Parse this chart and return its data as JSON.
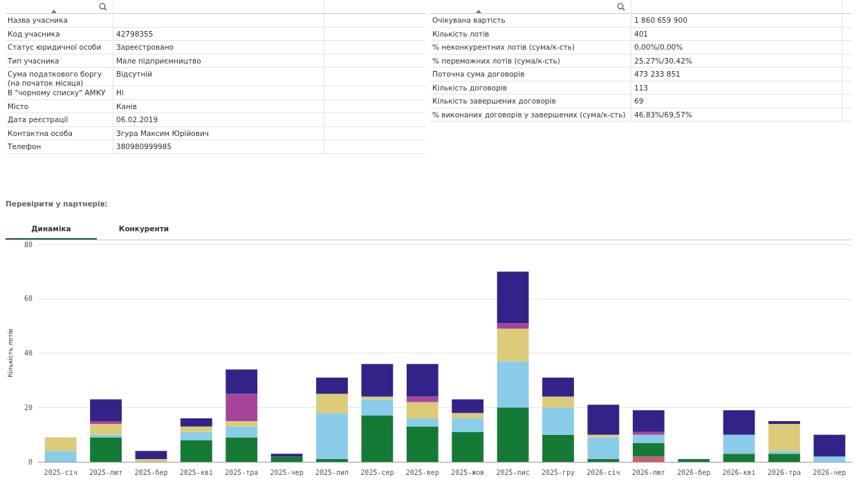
{
  "chart_data": {
    "type": "bar",
    "stacked": true,
    "ylabel": "Кількість лотів",
    "categories": [
      "2025-січ",
      "2025-лют",
      "2025-бер",
      "2025-кві",
      "2025-тра",
      "2025-чер",
      "2025-лип",
      "2025-сер",
      "2025-вер",
      "2025-жов",
      "2025-лис",
      "2025-гру",
      "2026-січ",
      "2026-лют",
      "2026-бер",
      "2026-кві",
      "2026-тра",
      "2026-чер"
    ],
    "series": [
      {
        "color": "#c9606e",
        "values": [
          0,
          0,
          0,
          0,
          0,
          0,
          0,
          0,
          0,
          0,
          0,
          0,
          0,
          2,
          0,
          0,
          0,
          0
        ]
      },
      {
        "color": "#157a36",
        "values": [
          0,
          9,
          0,
          8,
          9,
          2,
          1,
          17,
          13,
          11,
          20,
          10,
          1,
          5,
          1,
          3,
          3,
          0
        ]
      },
      {
        "color": "#8accea",
        "values": [
          4,
          1,
          0,
          3,
          4,
          0,
          17,
          6,
          3,
          5,
          17,
          10,
          8,
          3,
          0,
          7,
          1,
          2
        ]
      },
      {
        "color": "#dccb78",
        "values": [
          5,
          4,
          1,
          2,
          2,
          0,
          7,
          1,
          6,
          2,
          12,
          4,
          1,
          0,
          0,
          0,
          10,
          0
        ]
      },
      {
        "color": "#a6449a",
        "values": [
          0,
          1,
          0,
          0,
          10,
          0,
          0,
          0,
          2,
          0,
          2,
          0,
          0,
          1,
          0,
          0,
          0,
          0
        ]
      },
      {
        "color": "#332288",
        "values": [
          0,
          8,
          3,
          3,
          9,
          1,
          6,
          12,
          12,
          5,
          19,
          7,
          11,
          8,
          0,
          9,
          1,
          8
        ]
      }
    ],
    "ylim": [
      0,
      80
    ],
    "yticks": [
      0,
      20,
      40,
      60,
      80
    ],
    "grid": "y",
    "annotations": [
      "Назва учасника",
      "Код учасника",
      "42798355",
      "Статус юридичної особи",
      "Зареєстровано",
      "Тип учасника",
      "Мале підприємництво",
      "Сума податкового боргу (на початок місяця)",
      "Відсутній",
      "В \"чорному списку\" АМКУ",
      "Ні",
      "Місто",
      "Канів",
      "Дата реєстрації",
      "06.02.2019",
      "Контактна особа",
      "Згура Максим Юрійович",
      "Телефон",
      "380980999985",
      "Очікувана вартість",
      "1 860 659 900",
      "Кількість лотів",
      "401",
      "% неконкурентних лотів (сума/к-сть)",
      "0,00%/0,00%",
      "% переможних лотів (сума/к-сть)",
      "25,27%/30,42%",
      "Поточна сума договорів",
      "473 233 851",
      "Кількість договорів",
      "113",
      "Кількість завершених договорів",
      "69",
      "% виконаних договорів у завершених (сума/к-сть)",
      "46,83%/69,57%",
      "Перевірити у партнерів:",
      "Динаміка",
      "Конкуренти"
    ]
  }
}
